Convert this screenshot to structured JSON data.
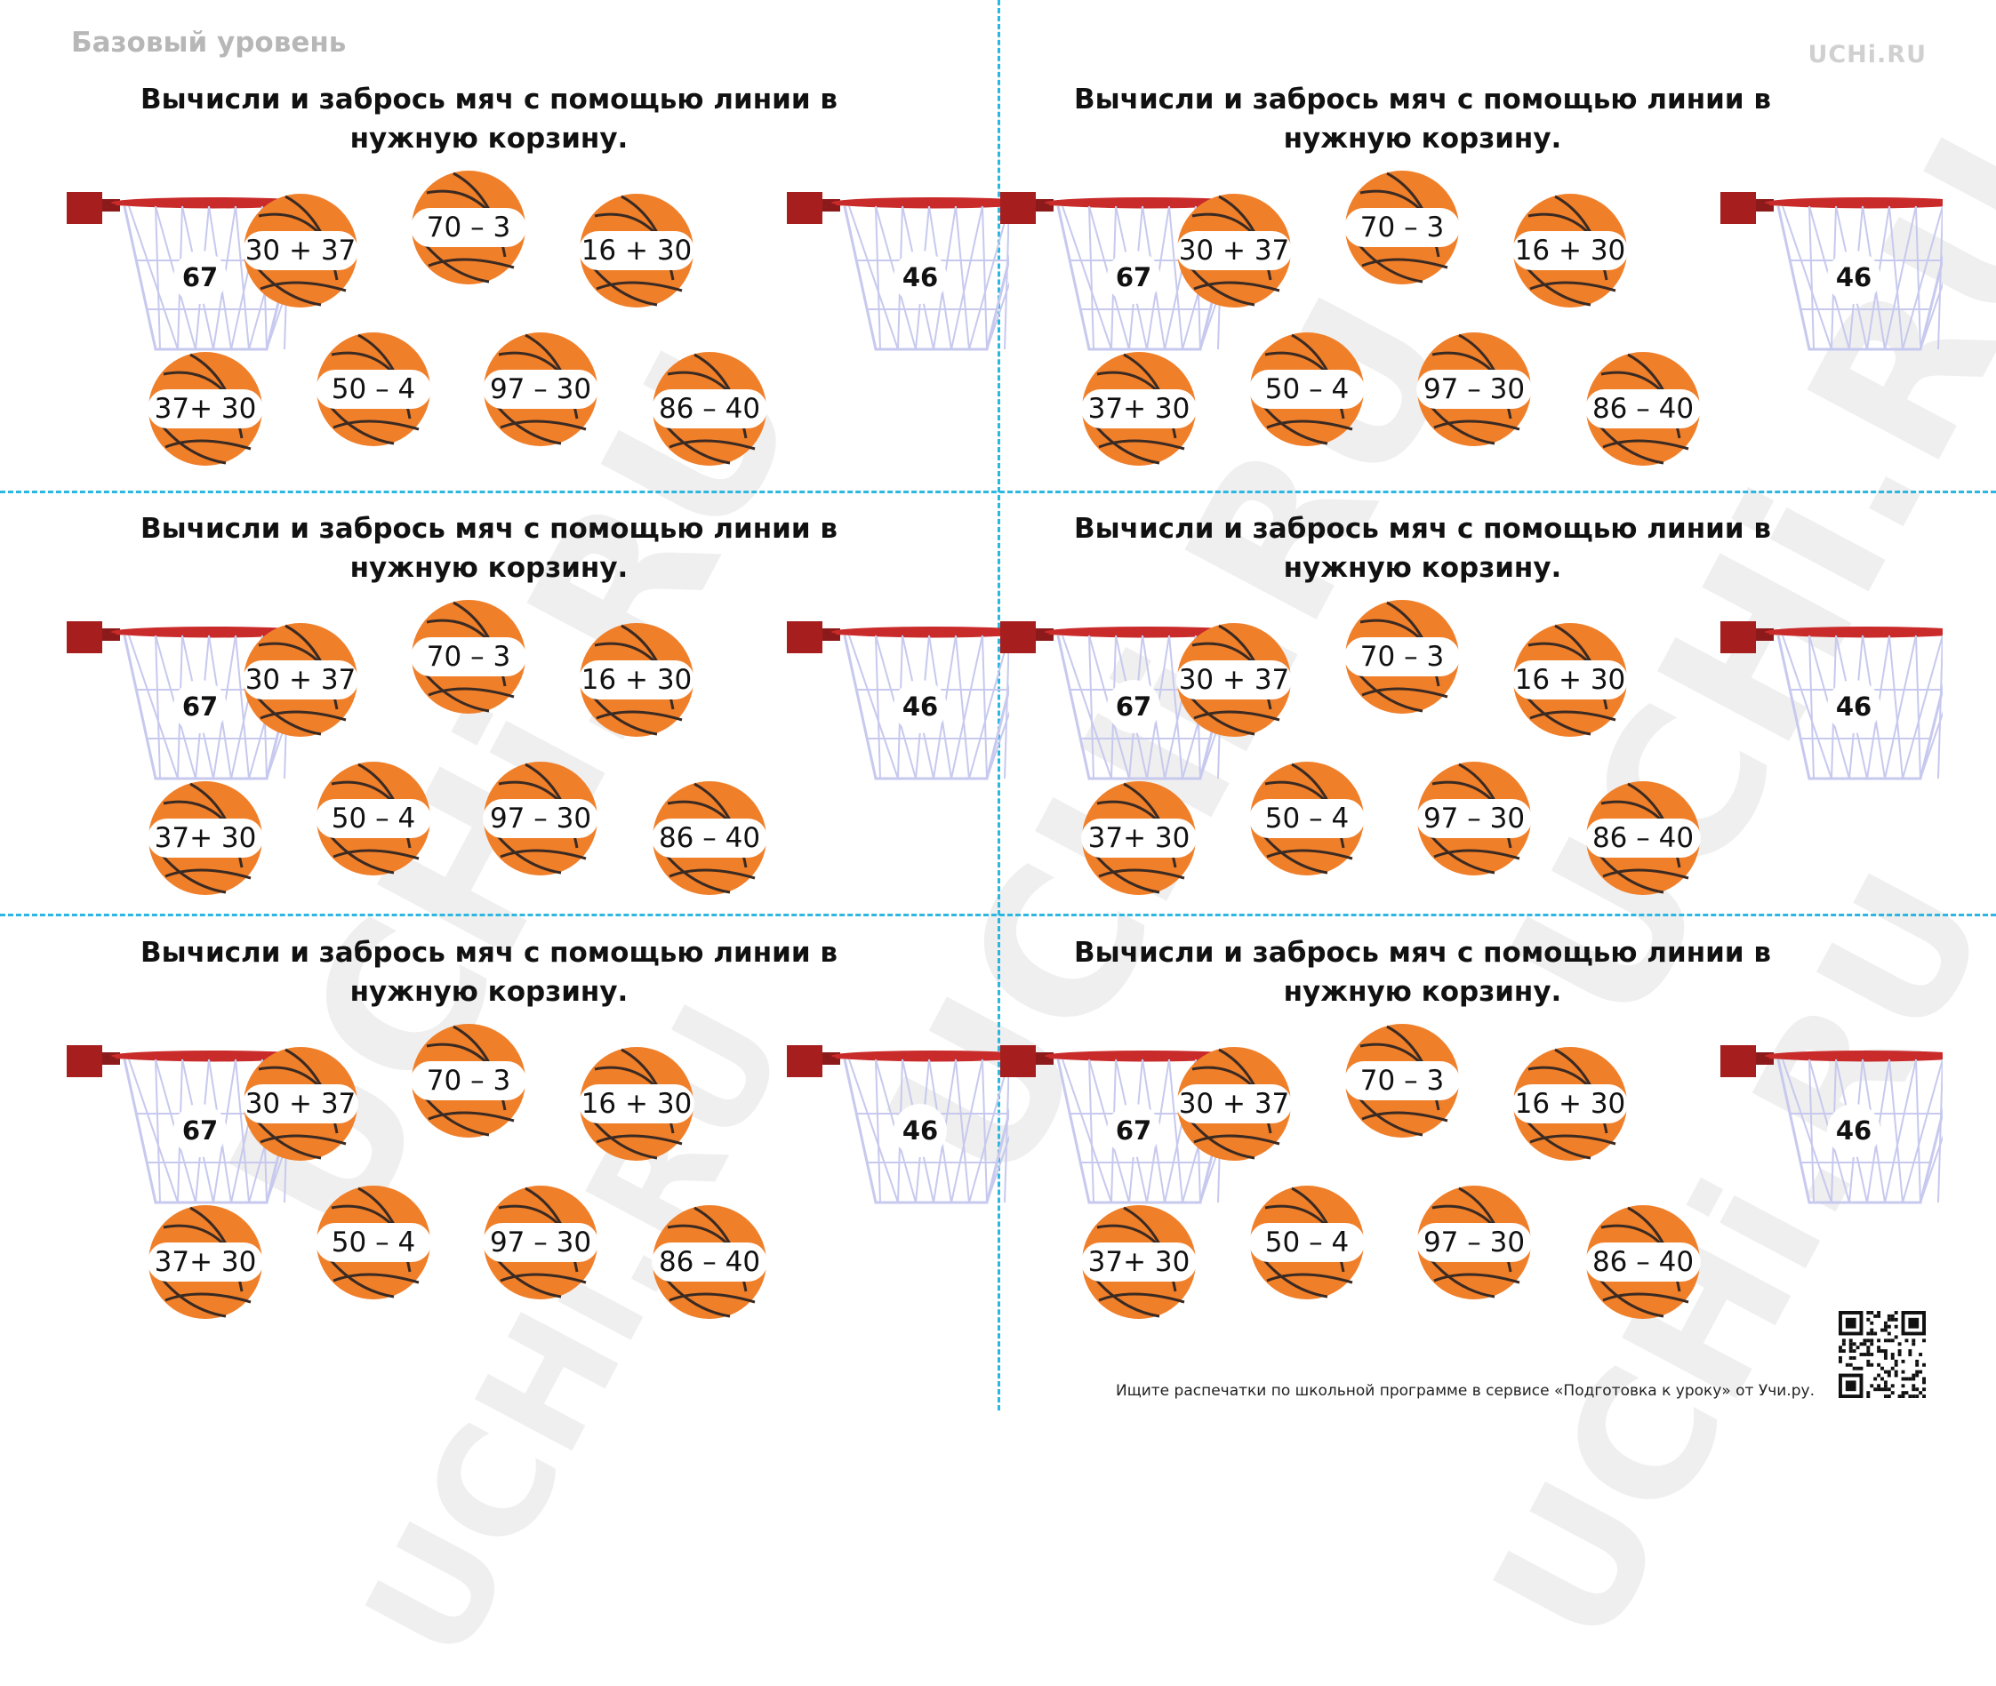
{
  "header": {
    "level": "Базовый уровень",
    "brand": "UCHi.RU"
  },
  "watermark": "UCHi.RU",
  "cards": [
    {
      "title": "Вычисли и забрось мяч с помощью линии в нужную корзину.",
      "baskets": [
        "67",
        "46"
      ],
      "balls": [
        "30 + 37",
        "70 – 3",
        "16 + 30",
        "37+ 30",
        "50 – 4",
        "97 – 30",
        "86 – 40"
      ]
    },
    {
      "title": "Вычисли и забрось мяч с помощью линии в нужную корзину.",
      "baskets": [
        "67",
        "46"
      ],
      "balls": [
        "30 + 37",
        "70 – 3",
        "16 + 30",
        "37+ 30",
        "50 – 4",
        "97 – 30",
        "86 – 40"
      ]
    },
    {
      "title": "Вычисли и забрось мяч с помощью линии в нужную корзину.",
      "baskets": [
        "67",
        "46"
      ],
      "balls": [
        "30 + 37",
        "70 – 3",
        "16 + 30",
        "37+ 30",
        "50 – 4",
        "97 – 30",
        "86 – 40"
      ]
    },
    {
      "title": "Вычисли и забрось мяч с помощью линии в нужную корзину.",
      "baskets": [
        "67",
        "46"
      ],
      "balls": [
        "30 + 37",
        "70 – 3",
        "16 + 30",
        "37+ 30",
        "50 – 4",
        "97 – 30",
        "86 – 40"
      ]
    },
    {
      "title": "Вычисли и забрось мяч с помощью линии в нужную корзину.",
      "baskets": [
        "67",
        "46"
      ],
      "balls": [
        "30 + 37",
        "70 – 3",
        "16 + 30",
        "37+ 30",
        "50 – 4",
        "97 – 30",
        "86 – 40"
      ]
    },
    {
      "title": "Вычисли и забрось мяч с помощью линии в нужную корзину.",
      "baskets": [
        "67",
        "46"
      ],
      "balls": [
        "30 + 37",
        "70 – 3",
        "16 + 30",
        "37+ 30",
        "50 – 4",
        "97 – 30",
        "86 – 40"
      ]
    }
  ],
  "footer": {
    "text": "Ищите распечатки по школьной программе в сервисе «Подготовка к уроку» от Учи.ру."
  },
  "icons": {
    "hoop": "basketball-hoop-icon",
    "ball": "basketball-icon",
    "qr": "qr-code-icon"
  },
  "colors": {
    "ball": "#f07f2a",
    "rim": "#c92a2a",
    "net": "#c7c9ee",
    "cut_line": "#2cb7e3"
  }
}
